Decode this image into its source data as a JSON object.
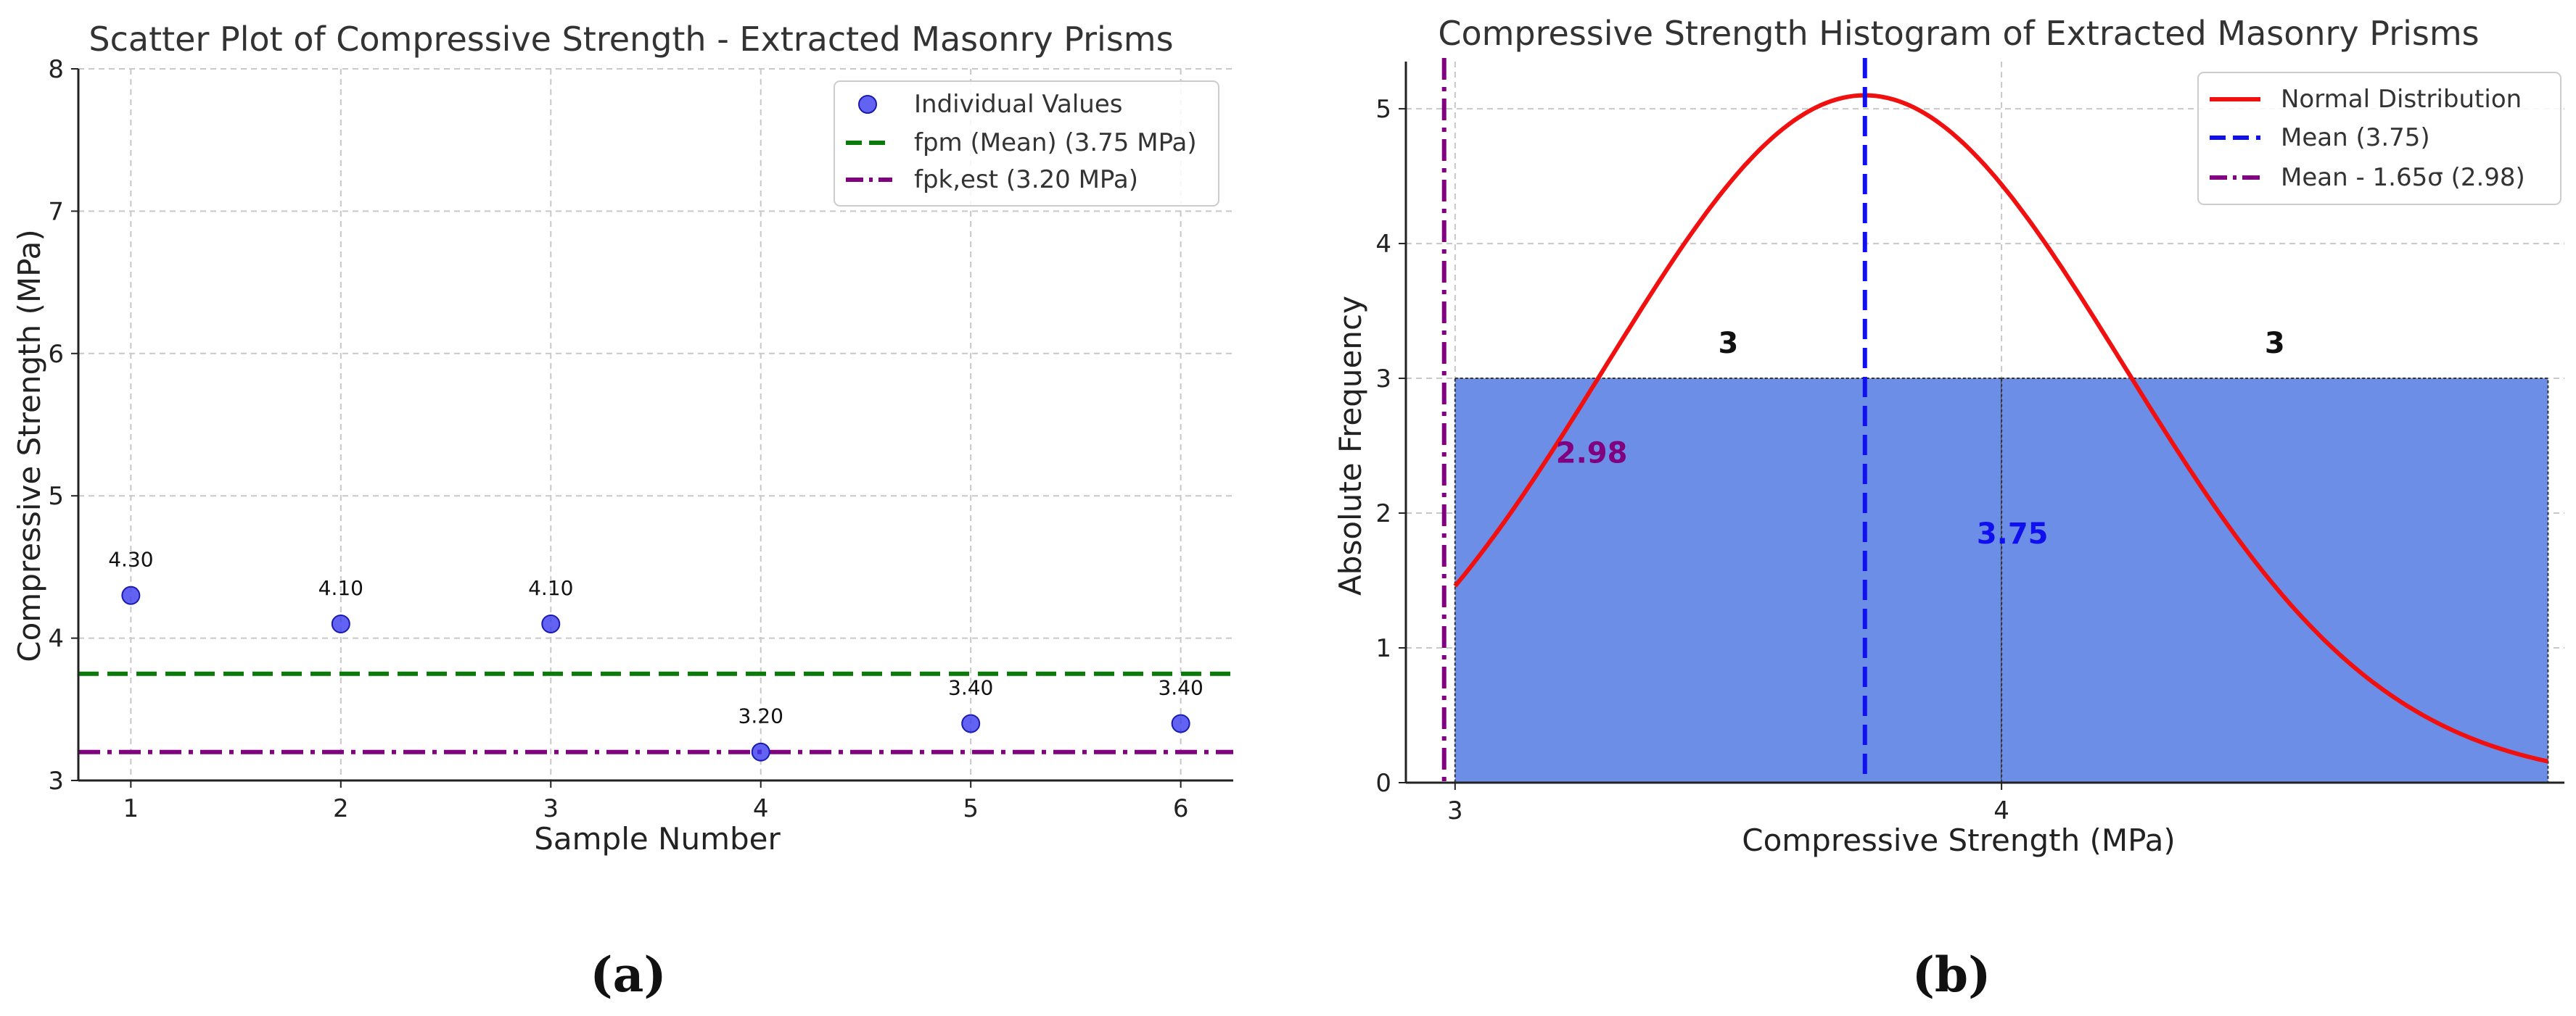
{
  "colors": {
    "scatter_points": "#3b3bf0",
    "mean_line_a": "#0a7a0a",
    "char_line": "#800080",
    "hist_bar": "#6d8ee6",
    "normal_curve": "#f01010",
    "mean_line_b": "#1010ee",
    "axis": "#222222",
    "grid": "#c8c8c8"
  },
  "chart_data": [
    {
      "type": "scatter",
      "title": "Scatter Plot of Compressive Strength - Extracted Masonry Prisms",
      "xlabel": "Sample Number",
      "ylabel": "Compressive Strength (MPa)",
      "xlim": [
        0.75,
        6.25
      ],
      "ylim": [
        3,
        8
      ],
      "xticks": [
        1,
        2,
        3,
        4,
        5,
        6
      ],
      "yticks": [
        3,
        4,
        5,
        6,
        7,
        8
      ],
      "grid": true,
      "x": [
        1,
        2,
        3,
        4,
        5,
        6
      ],
      "values": [
        4.3,
        4.1,
        4.1,
        3.2,
        3.4,
        3.4
      ],
      "point_labels": [
        "4.30",
        "4.10",
        "4.10",
        "3.20",
        "3.40",
        "3.40"
      ],
      "hlines": [
        {
          "name": "fpm (Mean) (3.75 MPa)",
          "y": 3.75,
          "style": "dashed"
        },
        {
          "name": "fpk,est (3.20 MPa)",
          "y": 3.2,
          "style": "dashdot"
        }
      ],
      "legend": [
        "Individual Values",
        "fpm (Mean) (3.75 MPa)",
        "fpk,est (3.20 MPa)"
      ],
      "legend_position": "top-right",
      "panel_label": "(a)"
    },
    {
      "type": "bar",
      "title": "Compressive Strength Histogram of Extracted Masonry Prisms",
      "xlabel": "Compressive Strength (MPa)",
      "ylabel": "Absolute Frequency",
      "xlim": [
        2.91,
        5.03
      ],
      "ylim": [
        0,
        5.35
      ],
      "xticks": [
        3,
        4
      ],
      "yticks": [
        0,
        1,
        2,
        3,
        4,
        5
      ],
      "grid": true,
      "bins": [
        {
          "start": 3.0,
          "end": 4.0,
          "count": 3
        },
        {
          "start": 4.0,
          "end": 5.0,
          "count": 3
        }
      ],
      "count_labels": [
        "3",
        "3"
      ],
      "normal_curve": {
        "name": "Normal Distribution",
        "mean": 3.75,
        "sigma": 0.474,
        "peak": 5.1
      },
      "vlines": [
        {
          "name": "Mean (3.75)",
          "x": 3.75,
          "label": "3.75",
          "style": "dashed"
        },
        {
          "name": "Mean - 1.65σ (2.98)",
          "x": 2.98,
          "label": "2.98",
          "style": "dashdot"
        }
      ],
      "legend": [
        "Normal Distribution",
        "Mean (3.75)",
        "Mean - 1.65σ (2.98)"
      ],
      "legend_position": "top-right",
      "panel_label": "(b)"
    }
  ]
}
